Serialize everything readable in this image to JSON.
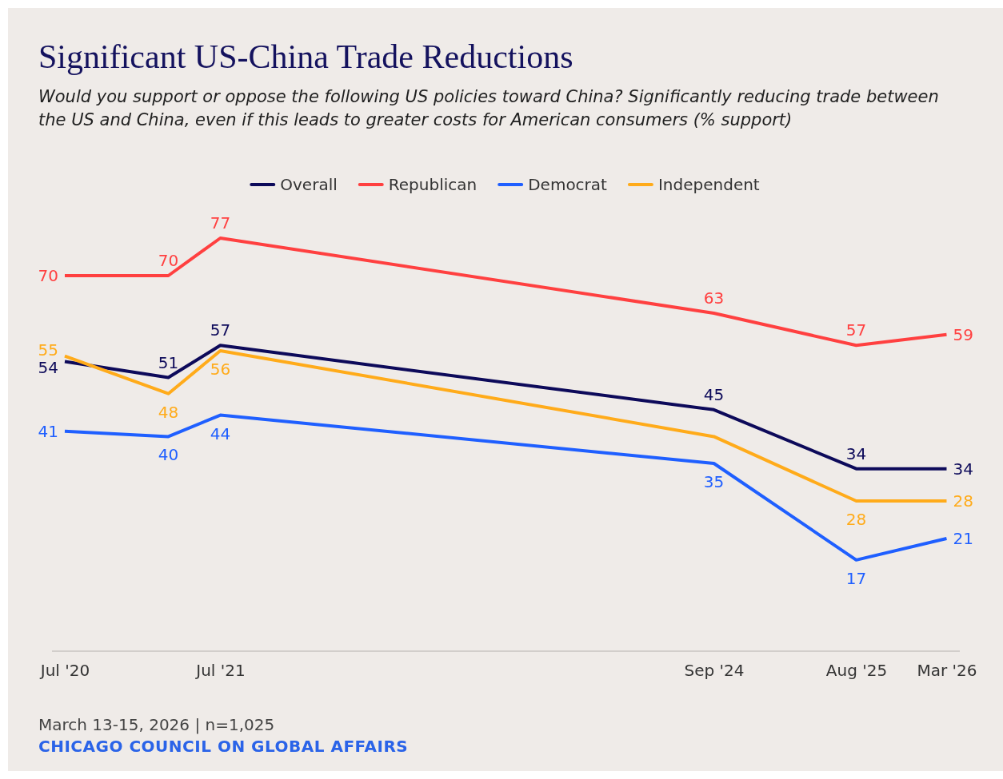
{
  "chart_data": {
    "type": "line",
    "title": "Significant US-China Trade Reductions",
    "subtitle": "Would you support or oppose the following US policies toward China? Significantly reducing trade between the US and China, even if this leads to greater costs for American consumers (% support)",
    "x": [
      "2020-07",
      "2021-03",
      "2021-07",
      "2024-09",
      "2025-08",
      "2026-03"
    ],
    "xlim": [
      "2020-06",
      "2026-04"
    ],
    "xticks": [
      {
        "value": "2020-07",
        "label": "Jul '20"
      },
      {
        "value": "2021-07",
        "label": "Jul '21"
      },
      {
        "value": "2024-09",
        "label": "Sep '24"
      },
      {
        "value": "2025-08",
        "label": "Aug '25"
      },
      {
        "value": "2026-03",
        "label": "Mar '26"
      }
    ],
    "tick_labels": "x",
    "legend": "top",
    "marker": "none",
    "line_style": "solid",
    "series": [
      {
        "name": "Overall",
        "color": "#0d0a5a",
        "values": [
          54,
          51,
          57,
          45,
          34,
          34
        ],
        "value_labels": [
          "54",
          "51",
          "57",
          "45",
          "34",
          "34"
        ]
      },
      {
        "name": "Republican",
        "color": "#ff4040",
        "values": [
          70,
          70,
          77,
          63,
          57,
          59
        ],
        "value_labels": [
          "70",
          "70",
          "77",
          "63",
          "57",
          "59"
        ]
      },
      {
        "name": "Democrat",
        "color": "#1f5fff",
        "values": [
          41,
          40,
          44,
          35,
          17,
          21
        ],
        "value_labels": [
          "41",
          "40",
          "44",
          "35",
          "17",
          "21"
        ]
      },
      {
        "name": "Independent",
        "color": "#ffab1a",
        "values": [
          55,
          48,
          56,
          40,
          28,
          28
        ],
        "value_labels": [
          "55",
          "48",
          "56",
          null,
          "28",
          "28"
        ]
      }
    ],
    "annotations": [
      "March 13-15, 2026 | n=1,025",
      "CHICAGO COUNCIL ON GLOBAL AFFAIRS"
    ]
  }
}
